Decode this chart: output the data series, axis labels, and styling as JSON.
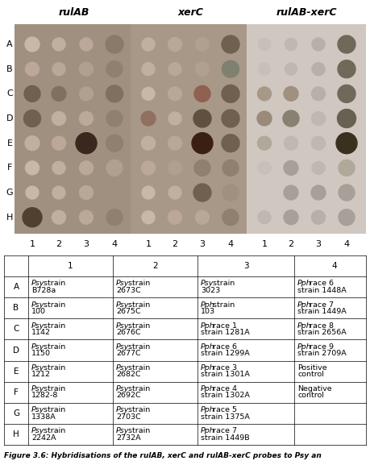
{
  "title_labels": [
    "rulAB",
    "xerC",
    "rulAB-xerC"
  ],
  "row_labels": [
    "A",
    "B",
    "C",
    "D",
    "E",
    "F",
    "G",
    "H"
  ],
  "col_labels": [
    "1",
    "2",
    "3",
    "4"
  ],
  "panel_bg_colors": [
    "#b8a898",
    "#b0a090",
    "#d8d0c8"
  ],
  "table_headers": [
    "",
    "1",
    "2",
    "3",
    "4"
  ],
  "table_rows": [
    [
      "A",
      "Psy strain\nB728a",
      "Psy strain\n2673C",
      "Psy strain\n3023",
      "Pph race 6\nstrain 1448A"
    ],
    [
      "B",
      "Psy strain\n100",
      "Psy strain\n2675C",
      "Pph strain\n103",
      "Pph race 7\nstrain 1449A"
    ],
    [
      "C",
      "Psy strain\n1142",
      "Psy strain\n2676C",
      "Pph race 1\nstrain 1281A",
      "Pph race 8\nstrain 2656A"
    ],
    [
      "D",
      "Psy strain\n1150",
      "Psy strain\n2677C",
      "Pph race 6\nstrain 1299A",
      "Pph race 9\nstrain 2709A"
    ],
    [
      "E",
      "Psy strain\n1212",
      "Psy strain\n2682C",
      "Pph race 3\nstrain 1301A",
      "Positive\ncontrol"
    ],
    [
      "F",
      "Psy strain\n1282-8",
      "Psy strain\n2692C",
      "Pph race 4\nstrain 1302A",
      "Negative\ncontrol"
    ],
    [
      "G",
      "Psy strain\n1338A",
      "Psy strain\n2703C",
      "Pph race 5\nstrain 1375A",
      ""
    ],
    [
      "H",
      "Psy strain\n2242A",
      "Psy strain\n2732A",
      "Pph race 7\nstrain 1449B",
      ""
    ]
  ],
  "italic_words": [
    "Psy",
    "Pph"
  ],
  "caption": "Figure 3.6: Hybridisations of the rulAB, xerC and rulAB-xerC probes to Psy an",
  "dot_grid": {
    "panel1": {
      "bg": "#a09080",
      "dots": [
        [
          0,
          0,
          18,
          "#c8b8a8",
          0.4
        ],
        [
          0,
          1,
          16,
          "#c0b0a0",
          0.3
        ],
        [
          0,
          2,
          16,
          "#bca89a",
          0.3
        ],
        [
          0,
          3,
          22,
          "#8a7a6a",
          0.6
        ],
        [
          1,
          0,
          17,
          "#bca89a",
          0.35
        ],
        [
          1,
          1,
          16,
          "#b8a898",
          0.3
        ],
        [
          1,
          2,
          17,
          "#b0a090",
          0.3
        ],
        [
          1,
          3,
          20,
          "#908070",
          0.5
        ],
        [
          2,
          0,
          20,
          "#706050",
          0.7
        ],
        [
          2,
          1,
          18,
          "#807060",
          0.6
        ],
        [
          2,
          2,
          17,
          "#b0a090",
          0.3
        ],
        [
          2,
          3,
          21,
          "#807060",
          0.6
        ],
        [
          3,
          0,
          21,
          "#706050",
          0.7
        ],
        [
          3,
          1,
          17,
          "#c0b0a0",
          0.3
        ],
        [
          3,
          2,
          17,
          "#bca898",
          0.3
        ],
        [
          3,
          3,
          20,
          "#908070",
          0.5
        ],
        [
          4,
          0,
          18,
          "#c0b0a0",
          0.35
        ],
        [
          4,
          1,
          17,
          "#bca898",
          0.3
        ],
        [
          4,
          2,
          26,
          "#3a2820",
          0.9
        ],
        [
          4,
          3,
          21,
          "#908070",
          0.5
        ],
        [
          5,
          0,
          17,
          "#c8b8a8",
          0.3
        ],
        [
          5,
          1,
          16,
          "#c0b0a0",
          0.25
        ],
        [
          5,
          2,
          17,
          "#bca898",
          0.3
        ],
        [
          5,
          3,
          20,
          "#b0a090",
          0.4
        ],
        [
          6,
          0,
          16,
          "#c8b8a8",
          0.25
        ],
        [
          6,
          1,
          16,
          "#c0b0a0",
          0.25
        ],
        [
          6,
          2,
          17,
          "#b8a898",
          0.3
        ],
        [
          6,
          3,
          20,
          "#a09080",
          0.45
        ],
        [
          7,
          0,
          24,
          "#504030",
          0.85
        ],
        [
          7,
          1,
          17,
          "#c0b0a0",
          0.3
        ],
        [
          7,
          2,
          17,
          "#bca898",
          0.3
        ],
        [
          7,
          3,
          20,
          "#908070",
          0.5
        ]
      ]
    },
    "panel2": {
      "bg": "#a89888",
      "dots": [
        [
          0,
          0,
          16,
          "#c0b0a0",
          0.3
        ],
        [
          0,
          1,
          17,
          "#b8a898",
          0.35
        ],
        [
          0,
          2,
          17,
          "#b0a090",
          0.35
        ],
        [
          0,
          3,
          22,
          "#706050",
          0.65
        ],
        [
          1,
          0,
          16,
          "#c0b0a0",
          0.3
        ],
        [
          1,
          1,
          16,
          "#b8a898",
          0.3
        ],
        [
          1,
          2,
          17,
          "#b0a090",
          0.3
        ],
        [
          1,
          3,
          21,
          "#808070",
          0.55
        ],
        [
          2,
          0,
          16,
          "#c8b8a8",
          0.25
        ],
        [
          2,
          1,
          17,
          "#b8a898",
          0.3
        ],
        [
          2,
          2,
          20,
          "#906050",
          0.6
        ],
        [
          2,
          3,
          22,
          "#706050",
          0.65
        ],
        [
          3,
          0,
          18,
          "#907060",
          0.55
        ],
        [
          3,
          1,
          16,
          "#c0b0a0",
          0.3
        ],
        [
          3,
          2,
          22,
          "#605040",
          0.7
        ],
        [
          3,
          3,
          22,
          "#706050",
          0.65
        ],
        [
          4,
          0,
          17,
          "#c0b0a0",
          0.3
        ],
        [
          4,
          1,
          17,
          "#b8a898",
          0.3
        ],
        [
          4,
          2,
          26,
          "#3a2010",
          0.9
        ],
        [
          4,
          3,
          22,
          "#706050",
          0.65
        ],
        [
          5,
          0,
          17,
          "#bca898",
          0.3
        ],
        [
          5,
          1,
          17,
          "#b0a090",
          0.3
        ],
        [
          5,
          2,
          20,
          "#908070",
          0.5
        ],
        [
          5,
          3,
          20,
          "#908070",
          0.5
        ],
        [
          6,
          0,
          16,
          "#c8b8a8",
          0.25
        ],
        [
          6,
          1,
          16,
          "#c0b0a0",
          0.25
        ],
        [
          6,
          2,
          22,
          "#706050",
          0.65
        ],
        [
          6,
          3,
          20,
          "#a09080",
          0.45
        ],
        [
          7,
          0,
          16,
          "#c8b8a8",
          0.25
        ],
        [
          7,
          1,
          17,
          "#bca898",
          0.3
        ],
        [
          7,
          2,
          17,
          "#b8a898",
          0.3
        ],
        [
          7,
          3,
          20,
          "#908070",
          0.5
        ]
      ]
    },
    "panel3": {
      "bg": "#d0c8c0",
      "dots": [
        [
          0,
          0,
          15,
          "#c8c0b8",
          0.2
        ],
        [
          0,
          1,
          15,
          "#c0b8b0",
          0.2
        ],
        [
          0,
          2,
          16,
          "#b8b0a8",
          0.25
        ],
        [
          0,
          3,
          22,
          "#706858",
          0.6
        ],
        [
          1,
          0,
          15,
          "#c8c0b8",
          0.2
        ],
        [
          1,
          1,
          15,
          "#c0b8b0",
          0.2
        ],
        [
          1,
          2,
          16,
          "#b8b0a8",
          0.25
        ],
        [
          1,
          3,
          22,
          "#706858",
          0.6
        ],
        [
          2,
          0,
          17,
          "#a89888",
          0.45
        ],
        [
          2,
          1,
          18,
          "#a09080",
          0.5
        ],
        [
          2,
          2,
          17,
          "#b8b0a8",
          0.3
        ],
        [
          2,
          3,
          22,
          "#706858",
          0.6
        ],
        [
          3,
          0,
          18,
          "#9a8a7a",
          0.5
        ],
        [
          3,
          1,
          20,
          "#888070",
          0.55
        ],
        [
          3,
          2,
          17,
          "#c0b8b0",
          0.25
        ],
        [
          3,
          3,
          23,
          "#686050",
          0.65
        ],
        [
          4,
          0,
          17,
          "#b0a898",
          0.35
        ],
        [
          4,
          1,
          17,
          "#c0b8b0",
          0.25
        ],
        [
          4,
          2,
          17,
          "#c0b8b0",
          0.25
        ],
        [
          4,
          3,
          26,
          "#3a3020",
          0.88
        ],
        [
          5,
          0,
          16,
          "#c8c0b8",
          0.2
        ],
        [
          5,
          1,
          18,
          "#a8a098",
          0.4
        ],
        [
          5,
          2,
          16,
          "#c0b8b0",
          0.2
        ],
        [
          5,
          3,
          20,
          "#b0a898",
          0.35
        ],
        [
          6,
          0,
          15,
          "#d0c8c0",
          0.15
        ],
        [
          6,
          1,
          18,
          "#a8a098",
          0.4
        ],
        [
          6,
          2,
          18,
          "#a8a098",
          0.4
        ],
        [
          6,
          3,
          20,
          "#a8a098",
          0.4
        ],
        [
          7,
          0,
          16,
          "#c0b8b0",
          0.2
        ],
        [
          7,
          1,
          18,
          "#a8a098",
          0.4
        ],
        [
          7,
          2,
          17,
          "#b8b0a8",
          0.3
        ],
        [
          7,
          3,
          20,
          "#a8a098",
          0.4
        ]
      ]
    }
  }
}
